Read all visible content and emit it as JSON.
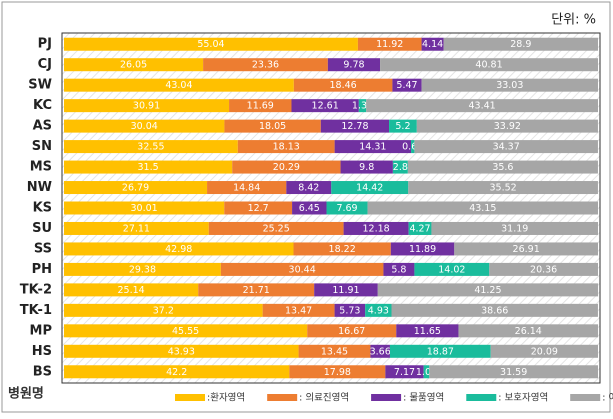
{
  "chart_data": {
    "type": "stacked-bar-horizontal",
    "unit_label": "단위: %",
    "y_label": "병원명",
    "categories": [
      "PJ",
      "CJ",
      "SW",
      "KC",
      "AS",
      "SN",
      "MS",
      "NW",
      "KS",
      "SU",
      "SS",
      "PH",
      "TK-2",
      "TK-1",
      "MP",
      "HS",
      "BS"
    ],
    "xlim": [
      0,
      100
    ],
    "series": [
      {
        "name": ":환자영역",
        "color": "#ffc000",
        "values": [
          55.04,
          26.05,
          43.04,
          30.91,
          30.04,
          32.55,
          31.5,
          26.79,
          30.01,
          27.11,
          42.98,
          29.38,
          25.14,
          37.2,
          45.55,
          43.93,
          42.2
        ]
      },
      {
        "name": ": 의료진영역",
        "color": "#ed7d31",
        "values": [
          11.92,
          23.36,
          18.46,
          11.69,
          18.05,
          18.13,
          20.29,
          14.84,
          12.7,
          25.25,
          18.22,
          30.44,
          21.71,
          13.47,
          16.67,
          13.45,
          17.98
        ]
      },
      {
        "name": ": 물품영역",
        "color": "#7030a0",
        "values": [
          4.14,
          9.78,
          5.47,
          12.61,
          12.78,
          14.31,
          9.8,
          8.42,
          6.45,
          12.18,
          11.89,
          5.8,
          11.91,
          5.73,
          11.65,
          3.66,
          7.17
        ]
      },
      {
        "name": ": 보호자영역",
        "color": "#1abc9c",
        "values": [
          null,
          null,
          0,
          1.38,
          5.2,
          0.63,
          2.8,
          14.42,
          7.69,
          4.27,
          null,
          14.02,
          null,
          4.93,
          null,
          18.87,
          1.06
        ]
      },
      {
        "name": ": 이동영역",
        "color": "#a6a6a6",
        "values": [
          28.9,
          40.81,
          33.03,
          43.41,
          33.92,
          34.37,
          35.6,
          35.52,
          43.15,
          31.19,
          26.91,
          20.36,
          41.25,
          38.66,
          26.14,
          20.09,
          31.59
        ]
      }
    ]
  }
}
